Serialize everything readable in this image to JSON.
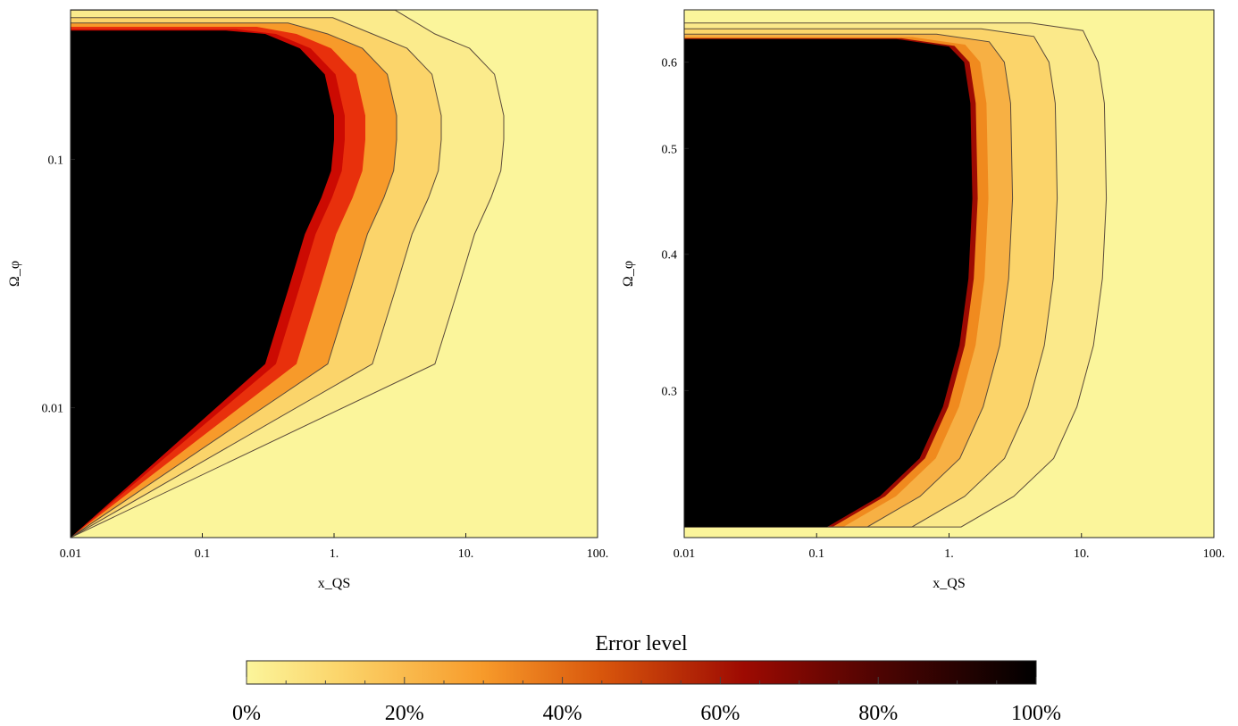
{
  "chart_data": [
    {
      "type": "heatmap",
      "xlabel": "x_QS",
      "ylabel": "Ω_φ",
      "x_scale": "log",
      "y_scale": "log",
      "xlim": [
        0.01,
        100
      ],
      "ylim": [
        0.003,
        0.4
      ],
      "x_ticks": [
        "0.01",
        "0.1",
        "1.",
        "10.",
        "100."
      ],
      "y_ticks": [
        "0.01",
        "0.1"
      ],
      "contour_levels_percent": [
        5,
        10,
        20,
        80
      ],
      "region_100_percent_boundary": {
        "x": [
          0.01,
          0.06,
          0.15,
          0.3,
          0.55,
          0.85,
          1.0,
          1.0,
          0.95,
          0.8,
          0.6,
          0.45,
          0.3,
          0.01
        ],
        "y": [
          0.33,
          0.33,
          0.33,
          0.32,
          0.28,
          0.22,
          0.15,
          0.12,
          0.09,
          0.07,
          0.05,
          0.03,
          0.015,
          0.003
        ]
      }
    },
    {
      "type": "heatmap",
      "xlabel": "x_QS",
      "ylabel": "Ω_φ",
      "x_scale": "log",
      "y_scale": "log",
      "xlim": [
        0.01,
        100
      ],
      "ylim": [
        0.22,
        0.67
      ],
      "x_ticks": [
        "0.01",
        "0.1",
        "1.",
        "10.",
        "100."
      ],
      "y_ticks": [
        "0.3",
        "0.4",
        "0.5",
        "0.6"
      ],
      "contour_levels_percent": [
        5,
        10,
        20
      ],
      "region_100_percent_boundary": {
        "x": [
          0.01,
          0.4,
          1.0,
          1.3,
          1.45,
          1.5,
          1.4,
          1.2,
          0.9,
          0.6,
          0.3,
          0.12,
          0.01
        ],
        "y": [
          0.63,
          0.63,
          0.62,
          0.6,
          0.55,
          0.45,
          0.38,
          0.33,
          0.29,
          0.26,
          0.24,
          0.225,
          0.225
        ]
      }
    }
  ],
  "colorbar": {
    "title": "Error level",
    "ticks": [
      "0%",
      "20%",
      "40%",
      "60%",
      "80%",
      "100%"
    ],
    "colors": [
      "#fbf59b",
      "#fbd46a",
      "#f79a2a",
      "#d8560c",
      "#9d0a02",
      "#4e0402",
      "#000000"
    ]
  }
}
